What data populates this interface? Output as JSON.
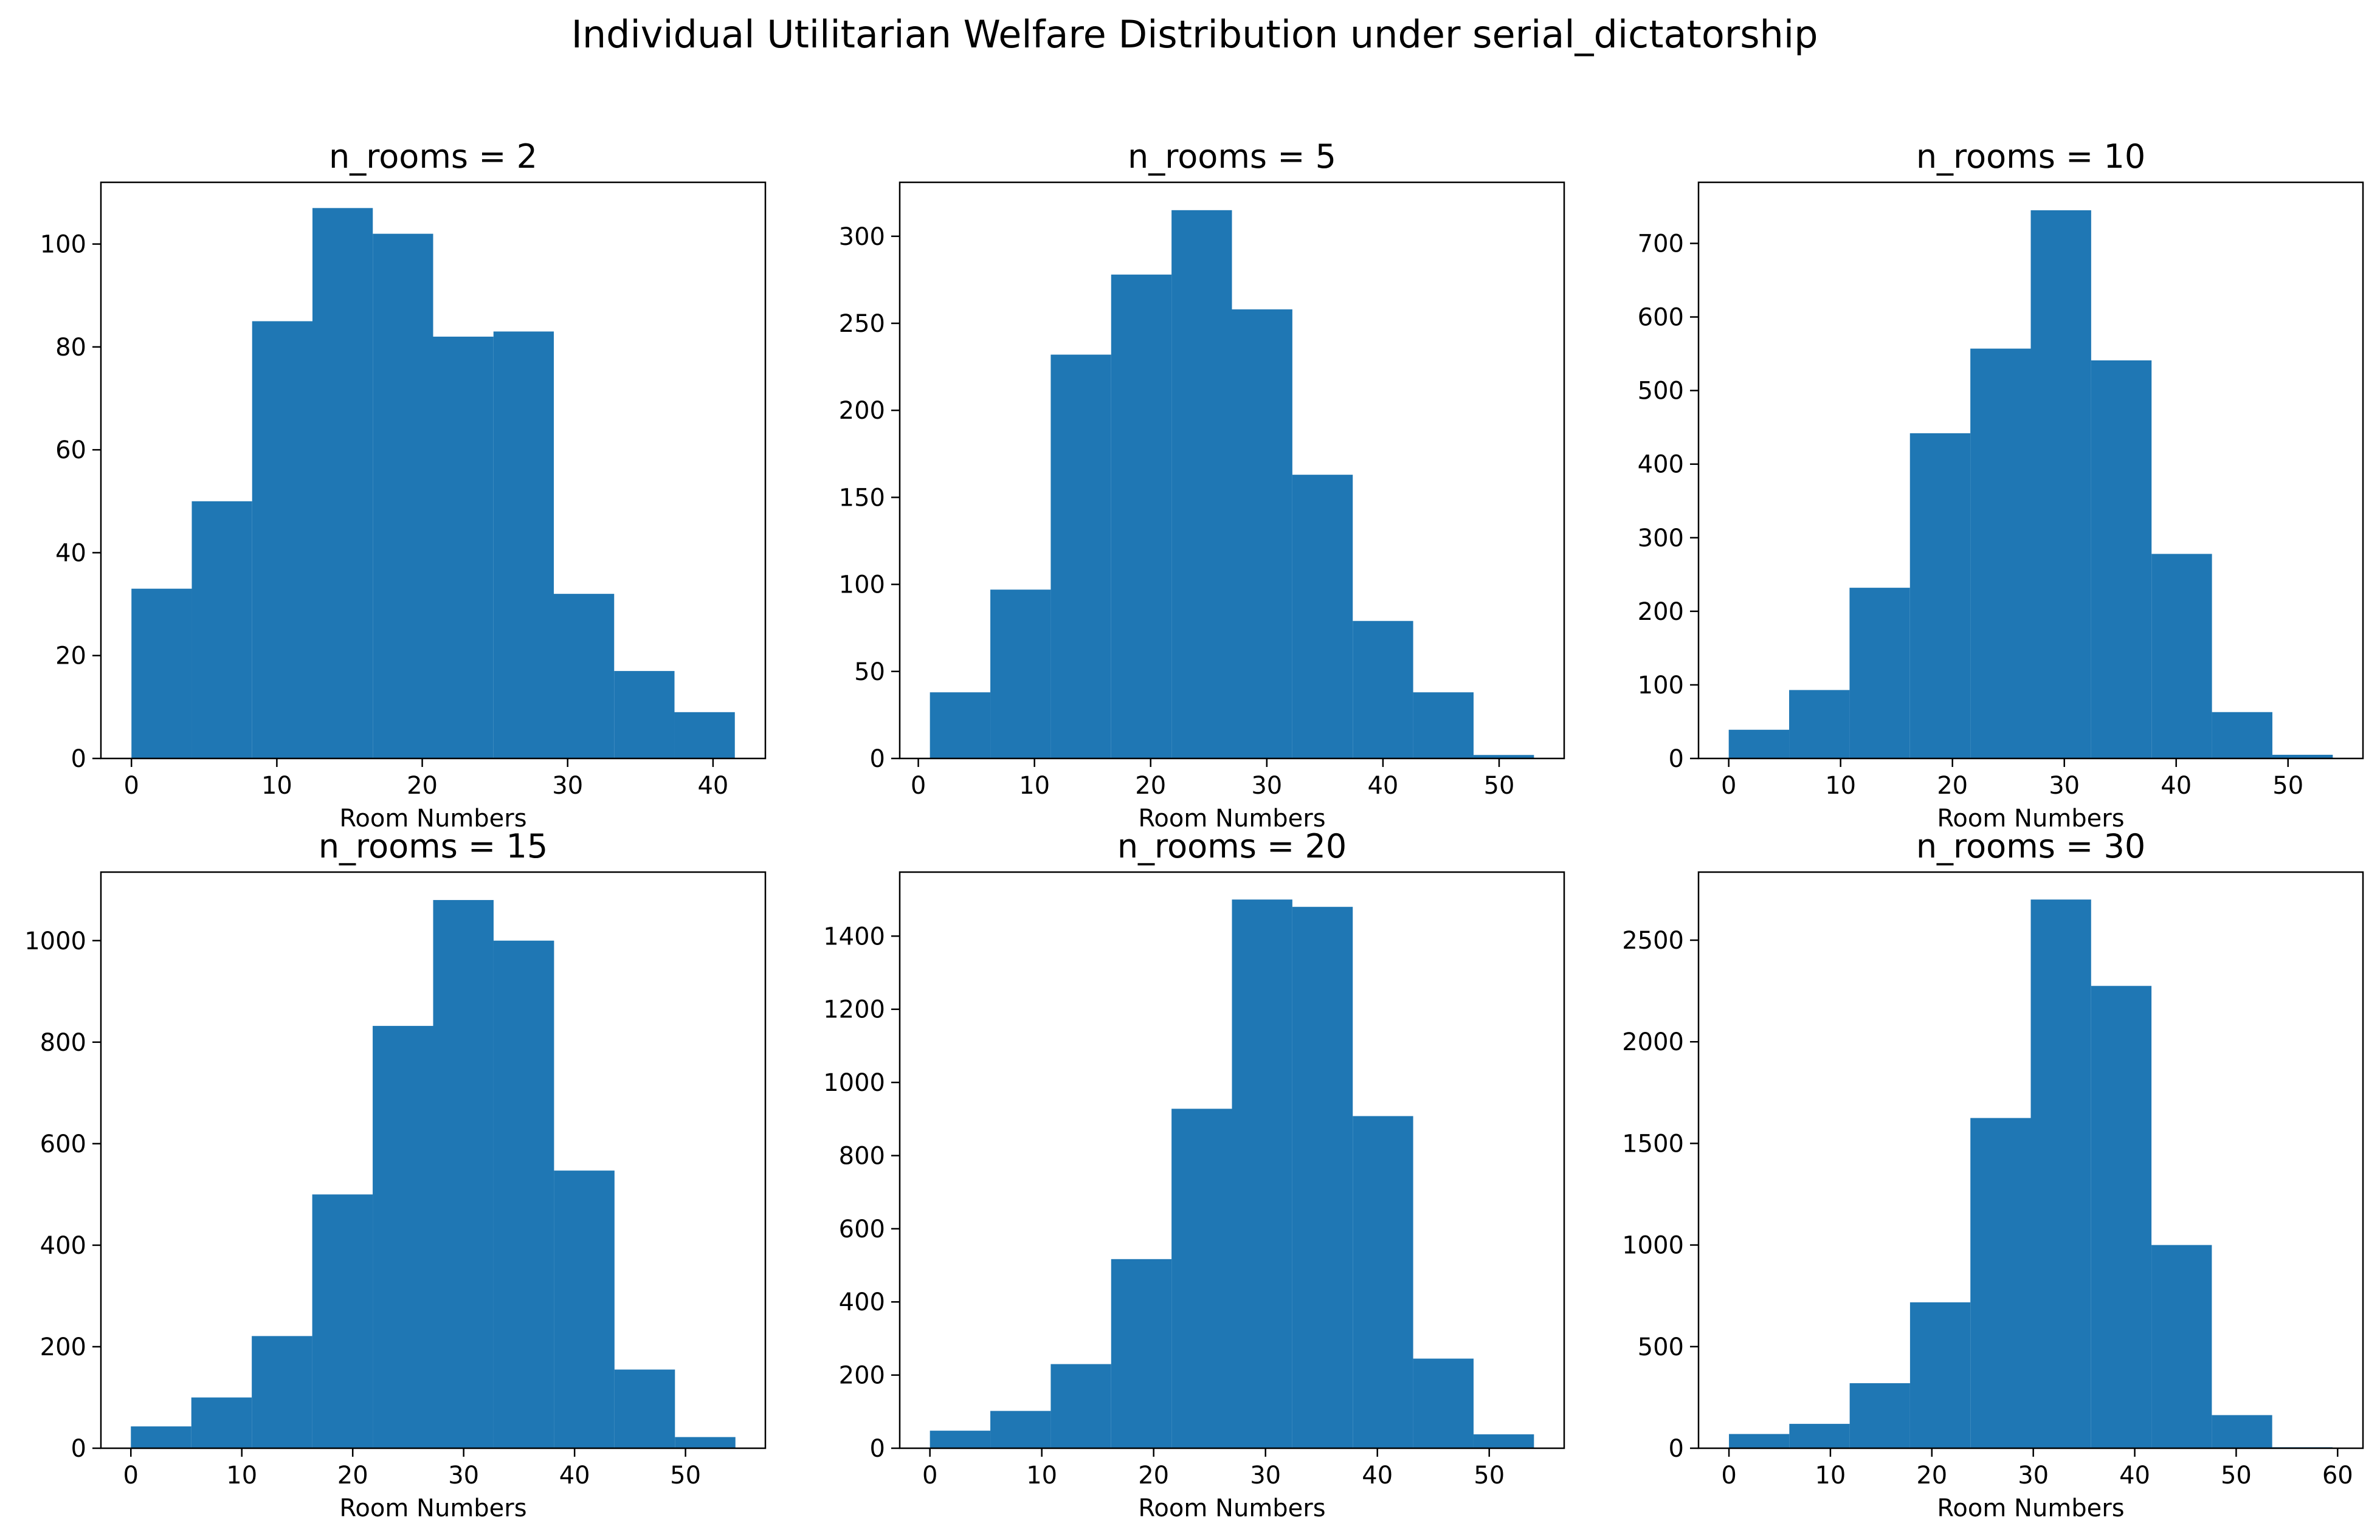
{
  "title": "Individual Utilitarian Welfare Distribution under serial_dictatorship",
  "bar_color": "#1f77b4",
  "chart_data": [
    {
      "type": "bar",
      "title": "n_rooms = 2",
      "xlabel": "Room Numbers",
      "ylabel": "",
      "bin_edges": [
        0,
        4.15,
        8.3,
        12.45,
        16.6,
        20.75,
        24.9,
        29.05,
        33.2,
        37.35,
        41.5
      ],
      "values": [
        33,
        50,
        85,
        107,
        102,
        82,
        83,
        32,
        17,
        9
      ],
      "xlim": [
        -2.1,
        43.6
      ],
      "ylim": [
        0,
        112
      ],
      "xticks": [
        0,
        10,
        20,
        30,
        40
      ],
      "yticks": [
        0,
        20,
        40,
        60,
        80,
        100
      ]
    },
    {
      "type": "bar",
      "title": "n_rooms = 5",
      "xlabel": "Room Numbers",
      "ylabel": "",
      "bin_edges": [
        1,
        6.2,
        11.4,
        16.6,
        21.8,
        27,
        32.2,
        37.4,
        42.6,
        47.8,
        53
      ],
      "values": [
        38,
        97,
        232,
        278,
        315,
        258,
        163,
        79,
        38,
        2
      ],
      "xlim": [
        -1.6,
        55.6
      ],
      "ylim": [
        0,
        331
      ],
      "xticks": [
        0,
        10,
        20,
        30,
        40,
        50
      ],
      "yticks": [
        0,
        50,
        100,
        150,
        200,
        250,
        300
      ]
    },
    {
      "type": "bar",
      "title": "n_rooms = 10",
      "xlabel": "Room Numbers",
      "ylabel": "",
      "bin_edges": [
        0,
        5.4,
        10.8,
        16.2,
        21.6,
        27,
        32.4,
        37.8,
        43.2,
        48.6,
        54
      ],
      "values": [
        39,
        93,
        232,
        442,
        557,
        745,
        541,
        278,
        63,
        5
      ],
      "xlim": [
        -2.7,
        56.7
      ],
      "ylim": [
        0,
        783
      ],
      "xticks": [
        0,
        10,
        20,
        30,
        40,
        50
      ],
      "yticks": [
        0,
        100,
        200,
        300,
        400,
        500,
        600,
        700
      ]
    },
    {
      "type": "bar",
      "title": "n_rooms = 15",
      "xlabel": "Room Numbers",
      "ylabel": "",
      "bin_edges": [
        0,
        5.45,
        10.9,
        16.35,
        21.8,
        27.25,
        32.7,
        38.15,
        43.6,
        49.05,
        54.5
      ],
      "values": [
        43,
        100,
        221,
        500,
        832,
        1080,
        1000,
        547,
        155,
        22
      ],
      "xlim": [
        -2.7,
        57.2
      ],
      "ylim": [
        0,
        1135
      ],
      "xticks": [
        0,
        10,
        20,
        30,
        40,
        50
      ],
      "yticks": [
        0,
        200,
        400,
        600,
        800,
        1000
      ]
    },
    {
      "type": "bar",
      "title": "n_rooms = 20",
      "xlabel": "Room Numbers",
      "ylabel": "",
      "bin_edges": [
        0,
        5.4,
        10.8,
        16.2,
        21.6,
        27,
        32.4,
        37.8,
        43.2,
        48.6,
        54
      ],
      "values": [
        48,
        102,
        230,
        517,
        928,
        1500,
        1480,
        908,
        245,
        38
      ],
      "xlim": [
        -2.7,
        56.7
      ],
      "ylim": [
        0,
        1575
      ],
      "xticks": [
        0,
        10,
        20,
        30,
        40,
        50
      ],
      "yticks": [
        0,
        200,
        400,
        600,
        800,
        1000,
        1200,
        1400
      ]
    },
    {
      "type": "bar",
      "title": "n_rooms = 30",
      "xlabel": "Room Numbers",
      "ylabel": "",
      "bin_edges": [
        0,
        5.95,
        11.9,
        17.85,
        23.8,
        29.75,
        35.7,
        41.65,
        47.6,
        53.55,
        59.5
      ],
      "values": [
        70,
        120,
        320,
        718,
        1625,
        2700,
        2275,
        1000,
        163,
        5
      ],
      "xlim": [
        -3,
        62.5
      ],
      "ylim": [
        0,
        2835
      ],
      "xticks": [
        0,
        10,
        20,
        30,
        40,
        50,
        60
      ],
      "yticks": [
        0,
        500,
        1000,
        1500,
        2000,
        2500
      ]
    }
  ]
}
